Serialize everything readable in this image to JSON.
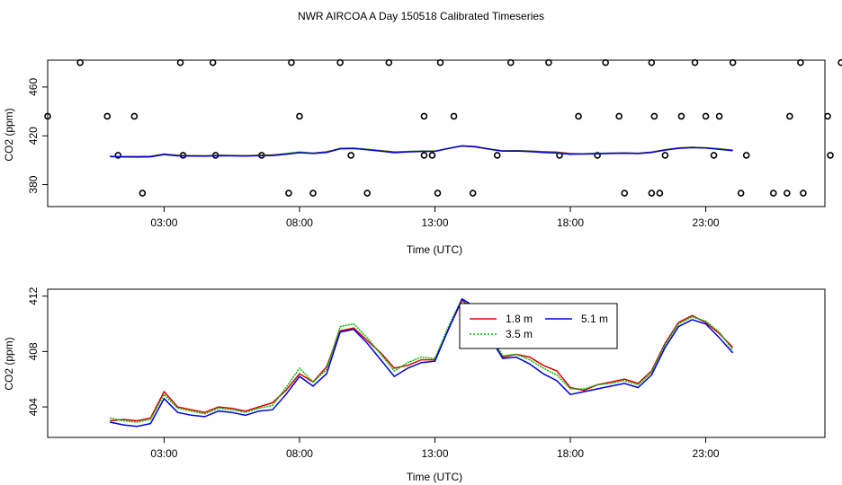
{
  "title": "NWR AIRCOA A  Day 150518  Calibrated Timeseries",
  "chart_data": [
    {
      "type": "line+scatter",
      "ylabel": "CO2 (ppm)",
      "xlabel": "Time (UTC)",
      "xlim": [
        -1.3,
        27.4
      ],
      "ylim": [
        362,
        482
      ],
      "xticks": [
        3,
        8,
        13,
        18,
        23
      ],
      "xtick_labels": [
        "03:00",
        "08:00",
        "13:00",
        "18:00",
        "23:00"
      ],
      "yticks": [
        380,
        420,
        460
      ],
      "ytick_labels": [
        "380",
        "420",
        "460"
      ],
      "flag_points": [
        [
          3.5,
          0
        ],
        [
          8.9,
          0
        ],
        [
          9.8,
          0
        ],
        [
          11.8,
          0
        ],
        [
          14.4,
          0
        ],
        [
          15.7,
          0
        ],
        [
          21.3,
          0
        ],
        [
          22.3,
          0
        ],
        [
          22.6,
          0
        ],
        [
          25.6,
          0
        ],
        [
          26.8,
          0
        ],
        [
          27.3,
          0
        ],
        [
          27.9,
          0
        ],
        [
          2.6,
          1
        ],
        [
          5.0,
          1
        ],
        [
          6.2,
          1
        ],
        [
          7.9,
          1
        ],
        [
          11.2,
          1
        ],
        [
          13.9,
          1
        ],
        [
          14.2,
          1
        ],
        [
          16.6,
          1
        ],
        [
          18.9,
          1
        ],
        [
          20.3,
          1
        ],
        [
          22.8,
          1
        ],
        [
          24.6,
          1
        ],
        [
          25.8,
          1
        ],
        [
          28.9,
          1
        ],
        [
          29.8,
          1
        ],
        [
          0.0,
          2
        ],
        [
          2.2,
          2
        ],
        [
          3.2,
          2
        ],
        [
          9.3,
          2
        ],
        [
          13.9,
          2
        ],
        [
          15.0,
          2
        ],
        [
          19.6,
          2
        ],
        [
          21.1,
          2
        ],
        [
          22.4,
          2
        ],
        [
          23.4,
          2
        ],
        [
          24.3,
          2
        ],
        [
          24.8,
          2
        ],
        [
          27.4,
          2
        ],
        [
          28.8,
          2
        ],
        [
          1.2,
          3
        ],
        [
          4.9,
          3
        ],
        [
          6.1,
          3
        ],
        [
          9.0,
          3
        ],
        [
          10.8,
          3
        ],
        [
          12.6,
          3
        ],
        [
          14.5,
          3
        ],
        [
          17.1,
          3
        ],
        [
          18.5,
          3
        ],
        [
          20.6,
          3
        ],
        [
          22.3,
          3
        ],
        [
          23.9,
          3
        ],
        [
          25.3,
          3
        ],
        [
          27.8,
          3
        ],
        [
          29.3,
          3
        ],
        [
          29.6,
          3
        ]
      ],
      "flag_levels": [
        373,
        404,
        436,
        480
      ],
      "flag_x_offset_hours": -1.3,
      "series": [
        {
          "color": "#dd0000",
          "values": [
            [
              1.0,
              403.0
            ],
            [
              1.5,
              403.1
            ],
            [
              2.0,
              403.0
            ],
            [
              2.5,
              403.2
            ],
            [
              3.0,
              405.1
            ],
            [
              3.5,
              404.0
            ],
            [
              4.0,
              403.8
            ],
            [
              4.5,
              403.6
            ],
            [
              5.0,
              404.0
            ],
            [
              5.5,
              403.9
            ],
            [
              6.0,
              403.7
            ],
            [
              6.5,
              404.0
            ],
            [
              7.0,
              404.3
            ],
            [
              7.5,
              405.2
            ],
            [
              8.0,
              406.4
            ],
            [
              8.5,
              405.8
            ],
            [
              9.0,
              406.9
            ],
            [
              9.5,
              409.5
            ],
            [
              10.0,
              409.7
            ],
            [
              10.5,
              408.8
            ],
            [
              11.0,
              407.9
            ],
            [
              11.5,
              406.8
            ],
            [
              12.0,
              407.0
            ],
            [
              12.5,
              407.4
            ],
            [
              13.0,
              407.4
            ],
            [
              13.5,
              409.6
            ],
            [
              14.0,
              411.7
            ],
            [
              14.5,
              410.8
            ],
            [
              15.0,
              409.1
            ],
            [
              15.5,
              407.6
            ],
            [
              16.0,
              407.8
            ],
            [
              16.5,
              407.6
            ],
            [
              17.0,
              407.0
            ],
            [
              17.5,
              406.6
            ],
            [
              18.0,
              405.4
            ],
            [
              18.5,
              405.2
            ],
            [
              19.0,
              405.6
            ],
            [
              19.5,
              405.8
            ],
            [
              20.0,
              406.0
            ],
            [
              20.5,
              405.7
            ],
            [
              21.0,
              406.6
            ],
            [
              21.5,
              408.6
            ],
            [
              22.0,
              410.1
            ],
            [
              22.5,
              410.6
            ],
            [
              23.0,
              410.1
            ],
            [
              23.5,
              409.3
            ],
            [
              24.0,
              408.3
            ]
          ]
        },
        {
          "color": "#00bb00",
          "values": [
            [
              1.0,
              403.2
            ],
            [
              1.5,
              403.0
            ],
            [
              2.0,
              402.9
            ],
            [
              2.5,
              403.1
            ],
            [
              3.0,
              404.9
            ],
            [
              3.5,
              403.9
            ],
            [
              4.0,
              403.7
            ],
            [
              4.5,
              403.5
            ],
            [
              5.0,
              403.9
            ],
            [
              5.5,
              403.8
            ],
            [
              6.0,
              403.6
            ],
            [
              6.5,
              403.9
            ],
            [
              7.0,
              404.1
            ],
            [
              7.5,
              405.4
            ],
            [
              8.0,
              406.8
            ],
            [
              8.5,
              405.8
            ],
            [
              9.0,
              406.7
            ],
            [
              9.5,
              409.8
            ],
            [
              10.0,
              410.0
            ],
            [
              10.5,
              409.0
            ],
            [
              11.0,
              407.8
            ],
            [
              11.5,
              406.6
            ],
            [
              12.0,
              407.2
            ],
            [
              12.5,
              407.6
            ],
            [
              13.0,
              407.5
            ],
            [
              13.5,
              409.8
            ],
            [
              14.0,
              411.8
            ],
            [
              14.5,
              411.0
            ],
            [
              15.0,
              409.3
            ],
            [
              15.5,
              407.7
            ],
            [
              16.0,
              407.8
            ],
            [
              16.5,
              407.4
            ],
            [
              17.0,
              406.8
            ],
            [
              17.5,
              406.3
            ],
            [
              18.0,
              405.3
            ],
            [
              18.5,
              405.3
            ],
            [
              19.0,
              405.6
            ],
            [
              19.5,
              405.7
            ],
            [
              20.0,
              405.9
            ],
            [
              20.5,
              405.6
            ],
            [
              21.0,
              406.5
            ],
            [
              21.5,
              408.5
            ],
            [
              22.0,
              410.0
            ],
            [
              22.5,
              410.5
            ],
            [
              23.0,
              410.2
            ],
            [
              23.5,
              409.4
            ],
            [
              24.0,
              408.1
            ]
          ]
        },
        {
          "color": "#0000dd",
          "values": [
            [
              1.0,
              402.9
            ],
            [
              1.5,
              402.7
            ],
            [
              2.0,
              402.6
            ],
            [
              2.5,
              402.8
            ],
            [
              3.0,
              404.6
            ],
            [
              3.5,
              403.6
            ],
            [
              4.0,
              403.4
            ],
            [
              4.5,
              403.3
            ],
            [
              5.0,
              403.7
            ],
            [
              5.5,
              403.6
            ],
            [
              6.0,
              403.4
            ],
            [
              6.5,
              403.7
            ],
            [
              7.0,
              403.8
            ],
            [
              7.5,
              404.9
            ],
            [
              8.0,
              406.2
            ],
            [
              8.5,
              405.5
            ],
            [
              9.0,
              406.4
            ],
            [
              9.5,
              409.4
            ],
            [
              10.0,
              409.6
            ],
            [
              10.5,
              408.6
            ],
            [
              11.0,
              407.4
            ],
            [
              11.5,
              406.2
            ],
            [
              12.0,
              406.8
            ],
            [
              12.5,
              407.2
            ],
            [
              13.0,
              407.3
            ],
            [
              13.5,
              409.6
            ],
            [
              14.0,
              411.8
            ],
            [
              14.5,
              411.2
            ],
            [
              15.0,
              409.1
            ],
            [
              15.5,
              407.5
            ],
            [
              16.0,
              407.6
            ],
            [
              16.5,
              407.1
            ],
            [
              17.0,
              406.4
            ],
            [
              17.5,
              405.9
            ],
            [
              18.0,
              404.9
            ],
            [
              18.5,
              405.1
            ],
            [
              19.0,
              405.3
            ],
            [
              19.5,
              405.5
            ],
            [
              20.0,
              405.7
            ],
            [
              20.5,
              405.4
            ],
            [
              21.0,
              406.3
            ],
            [
              21.5,
              408.3
            ],
            [
              22.0,
              409.8
            ],
            [
              22.5,
              410.3
            ],
            [
              23.0,
              410.0
            ],
            [
              23.5,
              409.0
            ],
            [
              24.0,
              407.9
            ]
          ]
        }
      ]
    },
    {
      "type": "line",
      "ylabel": "CO2 (ppm)",
      "xlabel": "Time (UTC)",
      "xlim": [
        -1.3,
        27.4
      ],
      "ylim": [
        401.8,
        412.5
      ],
      "xticks": [
        3,
        8,
        13,
        18,
        23
      ],
      "xtick_labels": [
        "03:00",
        "08:00",
        "13:00",
        "18:00",
        "23:00"
      ],
      "yticks": [
        404,
        408,
        412
      ],
      "ytick_labels": [
        "404",
        "408",
        "412"
      ],
      "legend_placement": "top-center",
      "series": [
        {
          "name": "1.8 m",
          "color": "#dd0000",
          "style": "solid"
        },
        {
          "name": "3.5 m",
          "color": "#00bb00",
          "style": "dotted"
        },
        {
          "name": "5.1 m",
          "color": "#0000dd",
          "style": "solid"
        }
      ]
    }
  ]
}
